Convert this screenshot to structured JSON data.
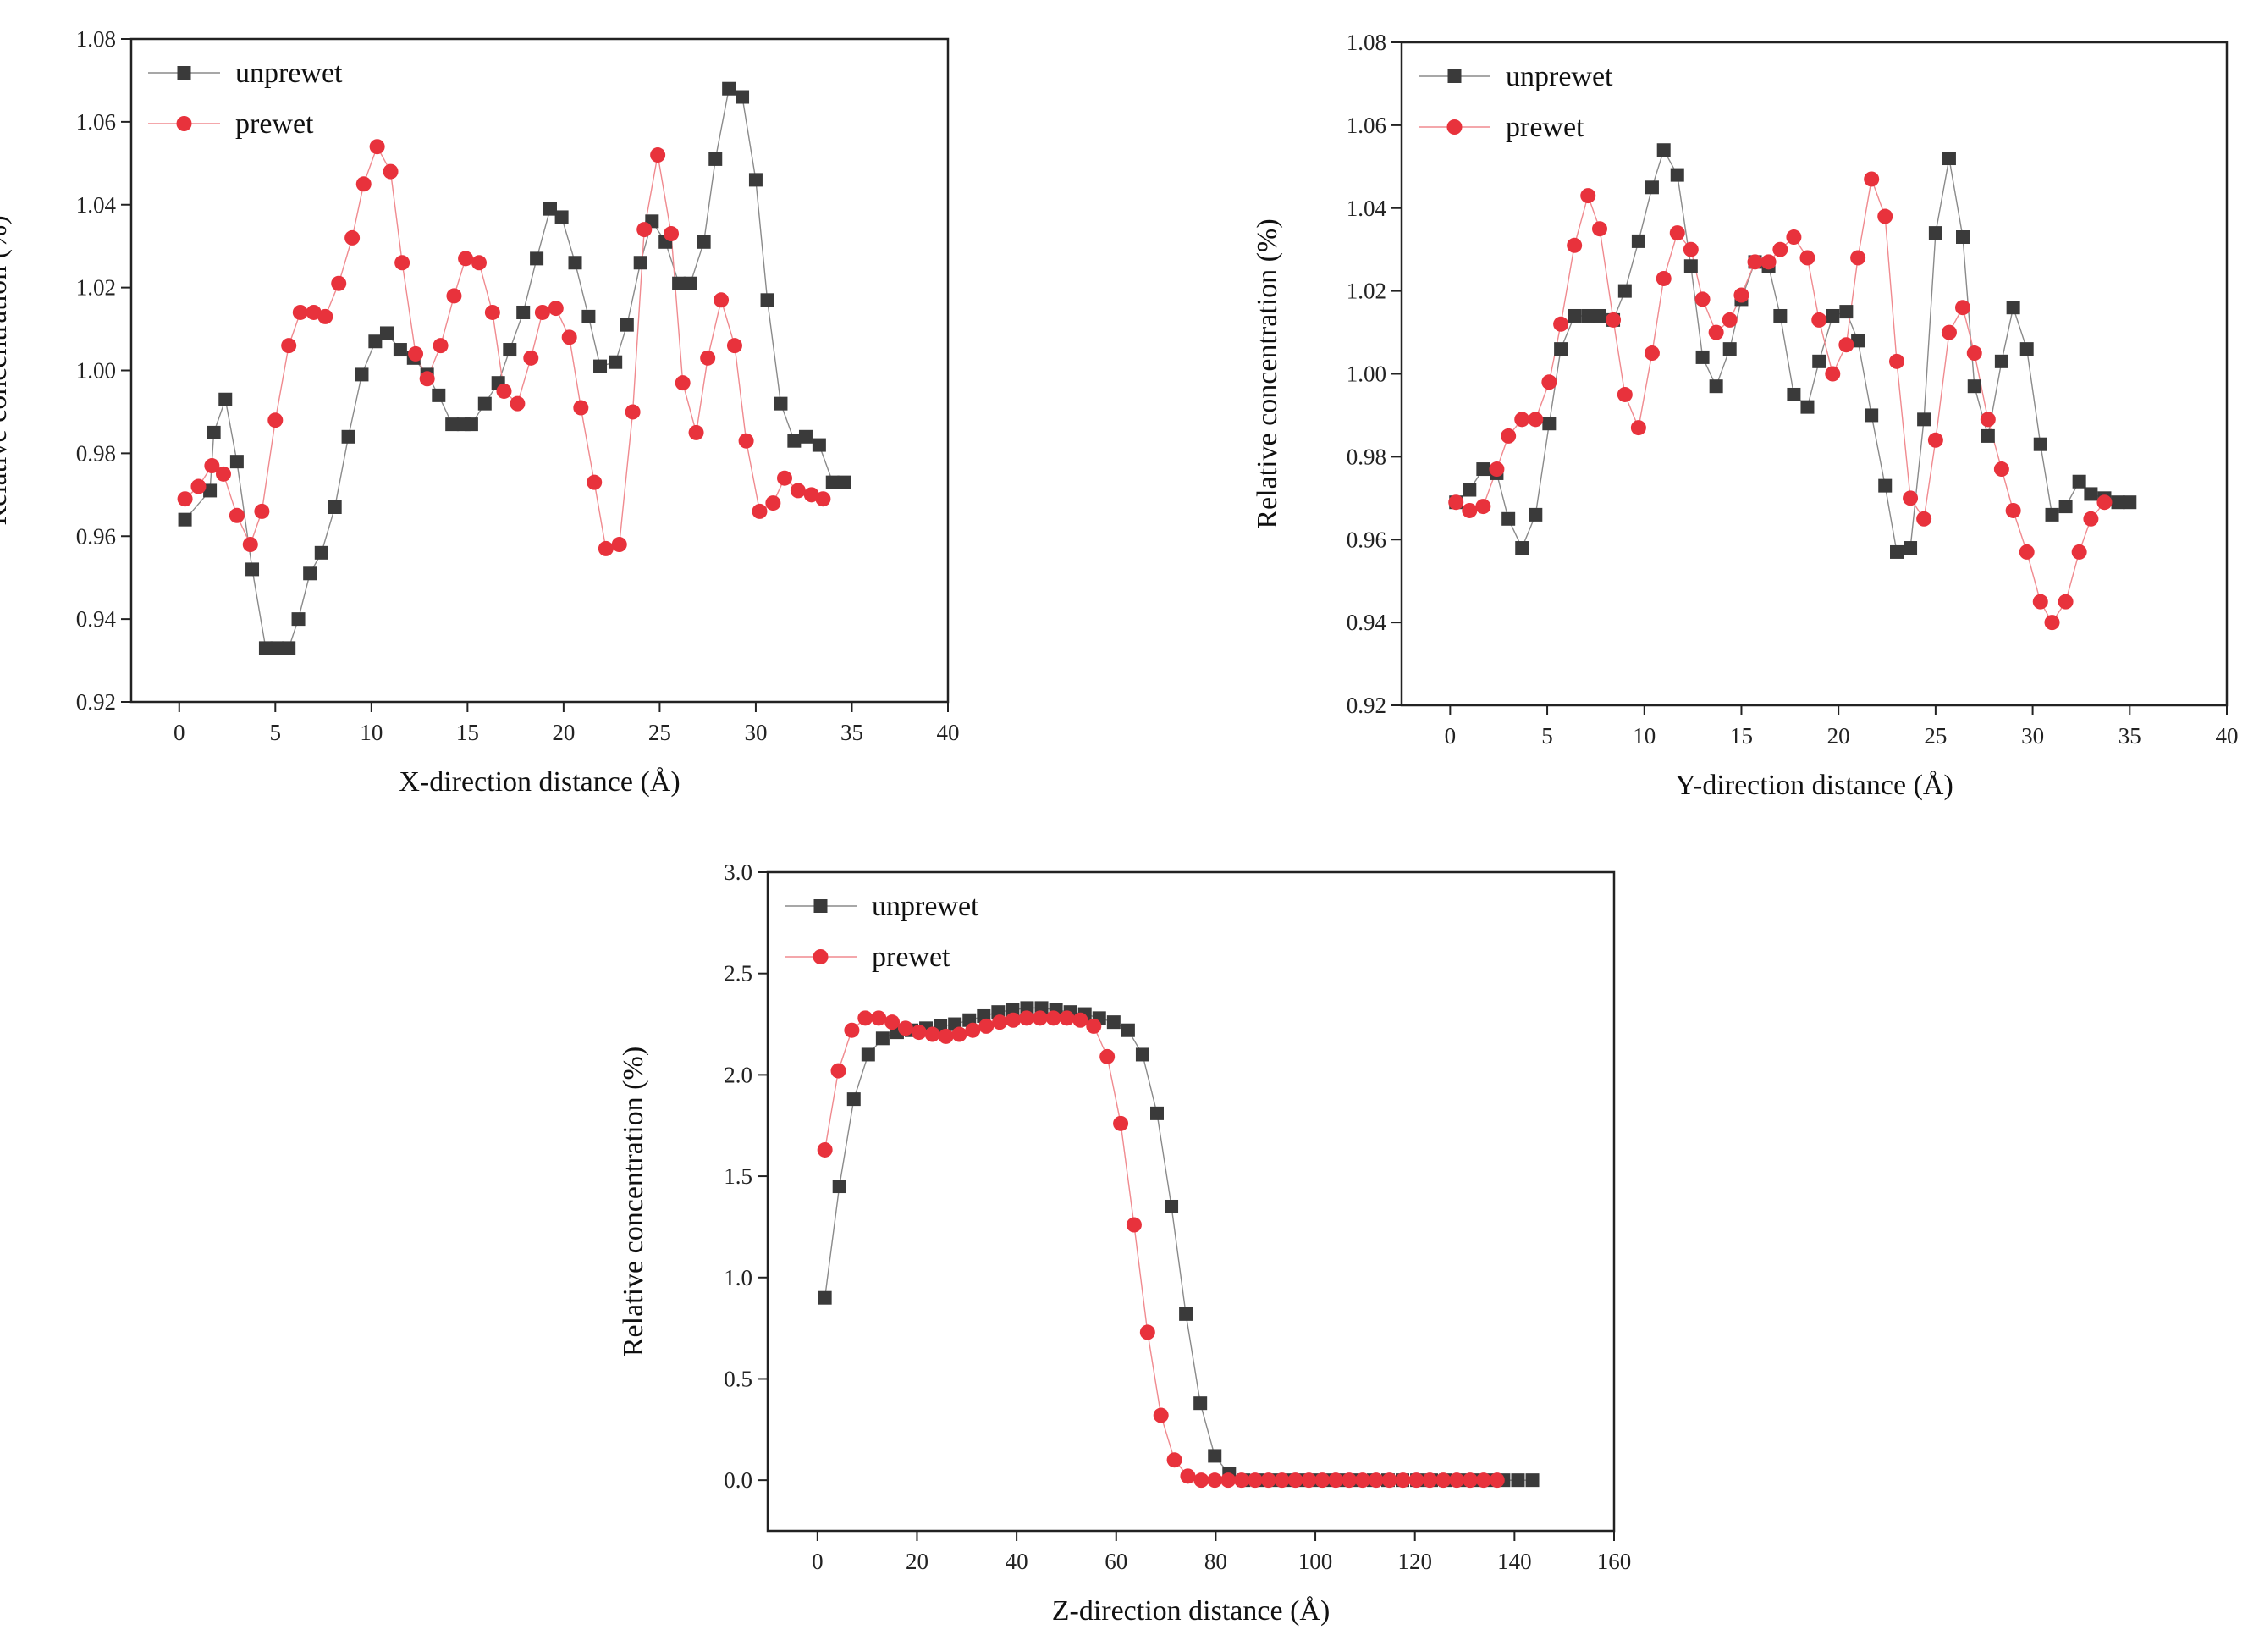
{
  "colors": {
    "unprewet": "#3a3a3a",
    "prewet": "#e8323c",
    "unprewet_line": "#8a8a8a",
    "prewet_line": "#f08a8f"
  },
  "chart_data": [
    {
      "id": "x",
      "type": "scatter",
      "xlabel": "X-direction distance (Å)",
      "ylabel": "Relative concentration (%)",
      "xlim": [
        -2.5,
        40
      ],
      "ylim": [
        0.92,
        1.08
      ],
      "xticks": [
        "0",
        "5",
        "10",
        "15",
        "20",
        "25",
        "30",
        "35",
        "40"
      ],
      "xtick_values": [
        0,
        5,
        10,
        15,
        20,
        25,
        30,
        35,
        40
      ],
      "yticks": [
        "0.92",
        "0.94",
        "0.96",
        "0.98",
        "1.00",
        "1.02",
        "1.04",
        "1.06",
        "1.08"
      ],
      "ytick_values": [
        0.92,
        0.94,
        0.96,
        0.98,
        1.0,
        1.02,
        1.04,
        1.06,
        1.08
      ],
      "legend": [
        "unprewet",
        "prewet"
      ],
      "series": [
        {
          "name": "unprewet",
          "marker": "square",
          "x": [
            0.3,
            1.6,
            1.8,
            2.4,
            3.0,
            3.8,
            4.5,
            5.1,
            5.7,
            6.2,
            6.8,
            7.4,
            8.1,
            8.8,
            9.5,
            10.2,
            10.8,
            11.5,
            12.2,
            12.9,
            13.5,
            14.2,
            14.8,
            15.2,
            15.9,
            16.6,
            17.2,
            17.9,
            18.6,
            19.3,
            19.9,
            20.6,
            21.3,
            21.9,
            22.7,
            23.3,
            24.0,
            24.6,
            25.3,
            26.0,
            26.6,
            27.3,
            27.9,
            28.6,
            29.3,
            30.0,
            30.6,
            31.3,
            32.0,
            32.6,
            33.3,
            34.0,
            34.6
          ],
          "values": [
            0.964,
            0.971,
            0.985,
            0.993,
            0.978,
            0.952,
            0.933,
            0.933,
            0.933,
            0.94,
            0.951,
            0.956,
            0.967,
            0.984,
            0.999,
            1.007,
            1.009,
            1.005,
            1.003,
            0.999,
            0.994,
            0.987,
            0.987,
            0.987,
            0.992,
            0.997,
            1.005,
            1.014,
            1.027,
            1.039,
            1.037,
            1.026,
            1.013,
            1.001,
            1.002,
            1.011,
            1.026,
            1.036,
            1.031,
            1.021,
            1.021,
            1.031,
            1.051,
            1.068,
            1.066,
            1.046,
            1.017,
            0.992,
            0.983,
            0.984,
            0.982,
            0.973,
            0.973
          ]
        },
        {
          "name": "prewet",
          "marker": "circle",
          "x": [
            0.3,
            1.0,
            1.7,
            2.3,
            3.0,
            3.7,
            4.3,
            5.0,
            5.7,
            6.3,
            7.0,
            7.6,
            8.3,
            9.0,
            9.6,
            10.3,
            11.0,
            11.6,
            12.3,
            12.9,
            13.6,
            14.3,
            14.9,
            15.6,
            16.3,
            16.9,
            17.6,
            18.3,
            18.9,
            19.6,
            20.3,
            20.9,
            21.6,
            22.2,
            22.9,
            23.6,
            24.2,
            24.9,
            25.6,
            26.2,
            26.9,
            27.5,
            28.2,
            28.9,
            29.5,
            30.2,
            30.9,
            31.5,
            32.2,
            32.9,
            33.5
          ],
          "values": [
            0.969,
            0.972,
            0.977,
            0.975,
            0.965,
            0.958,
            0.966,
            0.988,
            1.006,
            1.014,
            1.014,
            1.013,
            1.021,
            1.032,
            1.045,
            1.054,
            1.048,
            1.026,
            1.004,
            0.998,
            1.006,
            1.018,
            1.027,
            1.026,
            1.014,
            0.995,
            0.992,
            1.003,
            1.014,
            1.015,
            1.008,
            0.991,
            0.973,
            0.957,
            0.958,
            0.99,
            1.034,
            1.052,
            1.033,
            0.997,
            0.985,
            1.003,
            1.017,
            1.006,
            0.983,
            0.966,
            0.968,
            0.974,
            0.971,
            0.97,
            0.969
          ]
        }
      ]
    },
    {
      "id": "y",
      "type": "scatter",
      "xlabel": "Y-direction distance (Å)",
      "ylabel": "Relative concentration (%)",
      "xlim": [
        -2.5,
        40
      ],
      "ylim": [
        0.92,
        1.08
      ],
      "xticks": [
        "0",
        "5",
        "10",
        "15",
        "20",
        "25",
        "30",
        "35",
        "40"
      ],
      "xtick_values": [
        0,
        5,
        10,
        15,
        20,
        25,
        30,
        35,
        40
      ],
      "yticks": [
        "0.92",
        "0.94",
        "0.96",
        "0.98",
        "1.00",
        "1.02",
        "1.04",
        "1.06",
        "1.08"
      ],
      "ytick_values": [
        0.92,
        0.94,
        0.96,
        0.98,
        1.0,
        1.02,
        1.04,
        1.06,
        1.08
      ],
      "legend": [
        "unprewet",
        "prewet"
      ],
      "series": [
        {
          "name": "unprewet",
          "marker": "square",
          "x": [
            0.3,
            1.0,
            1.7,
            2.4,
            3.0,
            3.7,
            4.4,
            5.1,
            5.7,
            6.4,
            7.1,
            7.7,
            8.4,
            9.0,
            9.7,
            10.4,
            11.0,
            11.7,
            12.4,
            13.0,
            13.7,
            14.4,
            15.0,
            15.7,
            16.4,
            17.0,
            17.7,
            18.4,
            19.0,
            19.7,
            20.4,
            21.0,
            21.7,
            22.4,
            23.0,
            23.7,
            24.4,
            25.0,
            25.7,
            26.4,
            27.0,
            27.7,
            28.4,
            29.0,
            29.7,
            30.4,
            31.0,
            31.7,
            32.4,
            33.0,
            33.7,
            34.4,
            35.0
          ],
          "values": [
            0.969,
            0.972,
            0.977,
            0.976,
            0.965,
            0.958,
            0.966,
            0.988,
            1.006,
            1.014,
            1.014,
            1.014,
            1.013,
            1.02,
            1.032,
            1.045,
            1.054,
            1.048,
            1.026,
            1.004,
            0.997,
            1.006,
            1.018,
            1.027,
            1.026,
            1.014,
            0.995,
            0.992,
            1.003,
            1.014,
            1.015,
            1.008,
            0.99,
            0.973,
            0.957,
            0.958,
            0.989,
            1.034,
            1.052,
            1.033,
            0.997,
            0.985,
            1.003,
            1.016,
            1.006,
            0.983,
            0.966,
            0.968,
            0.974,
            0.971,
            0.97,
            0.969,
            0.969
          ]
        },
        {
          "name": "prewet",
          "marker": "circle",
          "x": [
            0.3,
            1.0,
            1.7,
            2.4,
            3.0,
            3.7,
            4.4,
            5.1,
            5.7,
            6.4,
            7.1,
            7.7,
            8.4,
            9.0,
            9.7,
            10.4,
            11.0,
            11.7,
            12.4,
            13.0,
            13.7,
            14.4,
            15.0,
            15.7,
            16.4,
            17.0,
            17.7,
            18.4,
            19.0,
            19.7,
            20.4,
            21.0,
            21.7,
            22.4,
            23.0,
            23.7,
            24.4,
            25.0,
            25.7,
            26.4,
            27.0,
            27.7,
            28.4,
            29.0,
            29.7,
            30.4,
            31.0,
            31.7,
            32.4,
            33.0,
            33.7
          ],
          "values": [
            0.969,
            0.967,
            0.968,
            0.977,
            0.985,
            0.989,
            0.989,
            0.998,
            1.012,
            1.031,
            1.043,
            1.035,
            1.013,
            0.995,
            0.987,
            1.005,
            1.023,
            1.034,
            1.03,
            1.018,
            1.01,
            1.013,
            1.019,
            1.027,
            1.027,
            1.03,
            1.033,
            1.028,
            1.013,
            1.0,
            1.007,
            1.028,
            1.047,
            1.038,
            1.003,
            0.97,
            0.965,
            0.984,
            1.01,
            1.016,
            1.005,
            0.989,
            0.977,
            0.967,
            0.957,
            0.945,
            0.94,
            0.945,
            0.957,
            0.965,
            0.969
          ]
        }
      ]
    },
    {
      "id": "z",
      "type": "scatter",
      "xlabel": "Z-direction distance (Å)",
      "ylabel": "Relative concentration (%)",
      "xlim": [
        -10,
        160
      ],
      "ylim": [
        -0.25,
        3.0
      ],
      "xticks": [
        "0",
        "20",
        "40",
        "60",
        "80",
        "100",
        "120",
        "140",
        "160"
      ],
      "xtick_values": [
        0,
        20,
        40,
        60,
        80,
        100,
        120,
        140,
        160
      ],
      "yticks": [
        "0.0",
        "0.5",
        "1.0",
        "1.5",
        "2.0",
        "2.5",
        "3.0"
      ],
      "ytick_values": [
        0.0,
        0.5,
        1.0,
        1.5,
        2.0,
        2.5,
        3.0
      ],
      "legend": [
        "unprewet",
        "prewet"
      ],
      "series": [
        {
          "name": "unprewet",
          "marker": "square",
          "x": [
            1.5,
            4.4,
            7.3,
            10.2,
            13.1,
            16.0,
            18.9,
            21.8,
            24.7,
            27.6,
            30.5,
            33.4,
            36.3,
            39.2,
            42.1,
            45.0,
            47.9,
            50.8,
            53.7,
            56.6,
            59.5,
            62.4,
            65.3,
            68.2,
            71.1,
            74.0,
            76.9,
            79.8,
            82.7,
            85.6,
            88.5,
            91.4,
            94.3,
            97.2,
            100.1,
            103.0,
            105.9,
            108.8,
            111.7,
            114.6,
            117.5,
            120.4,
            123.3,
            126.2,
            129.1,
            132.0,
            134.9,
            137.8,
            140.7,
            143.6
          ],
          "values": [
            0.9,
            1.45,
            1.88,
            2.1,
            2.18,
            2.21,
            2.22,
            2.23,
            2.24,
            2.25,
            2.27,
            2.29,
            2.31,
            2.32,
            2.33,
            2.33,
            2.32,
            2.31,
            2.3,
            2.28,
            2.26,
            2.22,
            2.1,
            1.81,
            1.35,
            0.82,
            0.38,
            0.12,
            0.03,
            0.0,
            0.0,
            0.0,
            0.0,
            0.0,
            0.0,
            0.0,
            0.0,
            0.0,
            0.0,
            0.0,
            0.0,
            0.0,
            0.0,
            0.0,
            0.0,
            0.0,
            0.0,
            0.0,
            0.0,
            0.0
          ]
        },
        {
          "name": "prewet",
          "marker": "circle",
          "x": [
            1.5,
            4.2,
            6.9,
            9.6,
            12.3,
            15.0,
            17.7,
            20.4,
            23.1,
            25.8,
            28.5,
            31.2,
            33.9,
            36.6,
            39.3,
            42.0,
            44.7,
            47.4,
            50.1,
            52.8,
            55.5,
            58.2,
            60.9,
            63.6,
            66.3,
            69.0,
            71.7,
            74.4,
            77.1,
            79.8,
            82.5,
            85.2,
            87.9,
            90.6,
            93.3,
            96.0,
            98.7,
            101.4,
            104.1,
            106.8,
            109.5,
            112.2,
            114.9,
            117.6,
            120.3,
            123.0,
            125.7,
            128.4,
            131.1,
            133.8,
            136.5
          ],
          "values": [
            1.63,
            2.02,
            2.22,
            2.28,
            2.28,
            2.26,
            2.23,
            2.21,
            2.2,
            2.19,
            2.2,
            2.22,
            2.24,
            2.26,
            2.27,
            2.28,
            2.28,
            2.28,
            2.28,
            2.27,
            2.24,
            2.09,
            1.76,
            1.26,
            0.73,
            0.32,
            0.1,
            0.02,
            0.0,
            0.0,
            0.0,
            0.0,
            0.0,
            0.0,
            0.0,
            0.0,
            0.0,
            0.0,
            0.0,
            0.0,
            0.0,
            0.0,
            0.0,
            0.0,
            0.0,
            0.0,
            0.0,
            0.0,
            0.0,
            0.0,
            0.0
          ]
        }
      ]
    }
  ]
}
